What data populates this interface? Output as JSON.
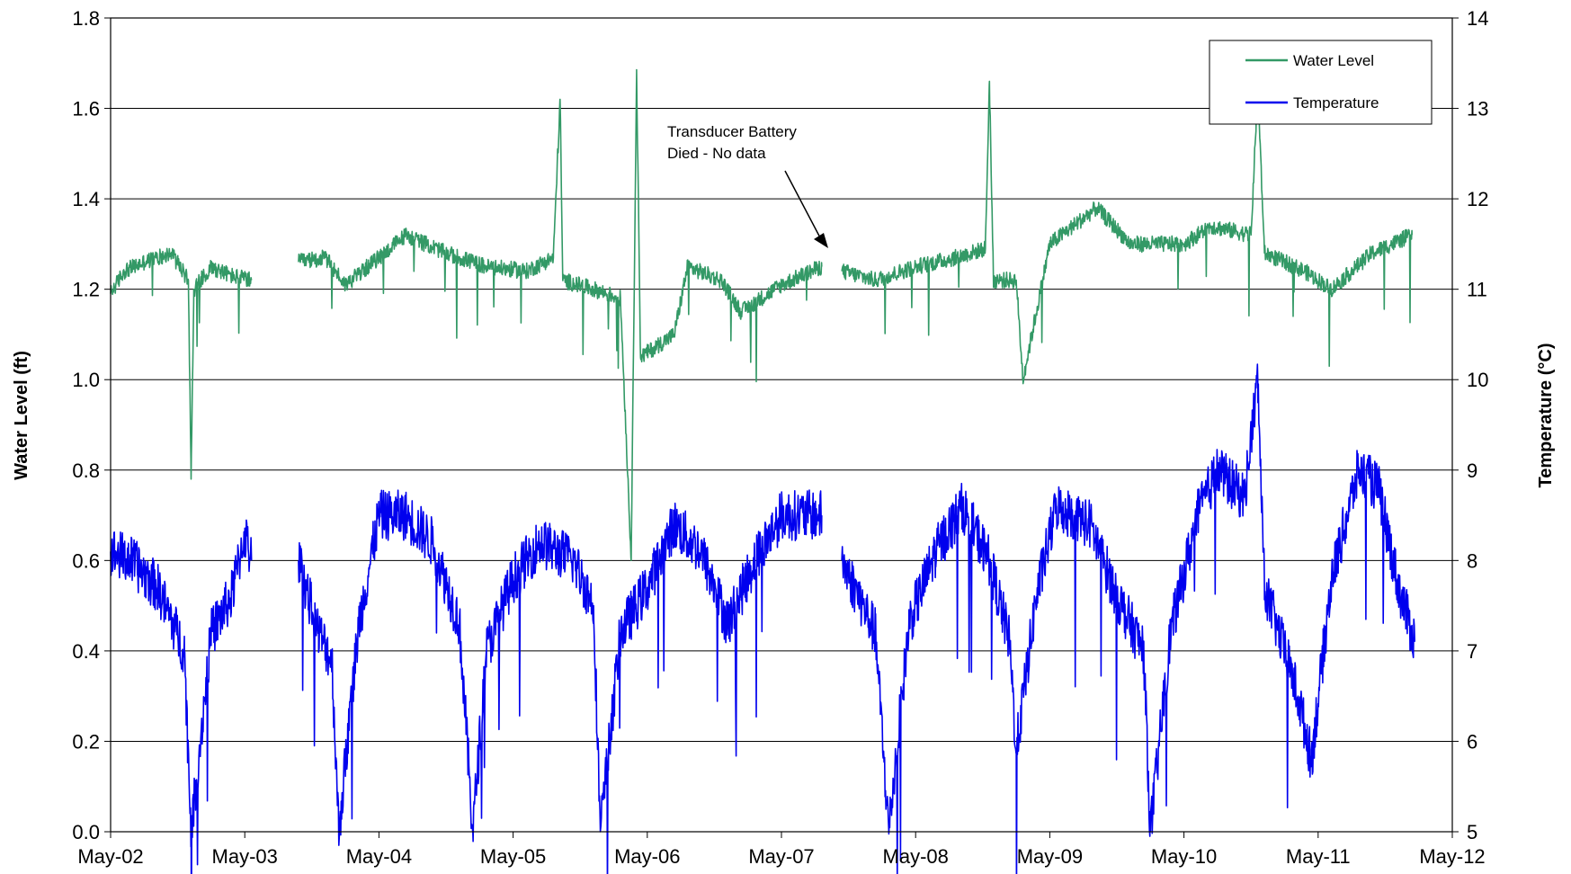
{
  "chart_data": {
    "type": "line",
    "title": "",
    "x_axis": {
      "tick_labels": [
        "May-02",
        "May-03",
        "May-04",
        "May-05",
        "May-06",
        "May-07",
        "May-08",
        "May-09",
        "May-10",
        "May-11",
        "May-12"
      ],
      "range": [
        "May-02",
        "May-12"
      ]
    },
    "y_left": {
      "label": "Water Level (ft)",
      "range": [
        0.0,
        1.8
      ],
      "ticks": [
        "0.0",
        "0.2",
        "0.4",
        "0.6",
        "0.8",
        "1.0",
        "1.2",
        "1.4",
        "1.6",
        "1.8"
      ]
    },
    "y_right": {
      "label": "Temperature (°C)",
      "range": [
        5,
        14
      ],
      "ticks": [
        "5",
        "6",
        "7",
        "8",
        "9",
        "10",
        "11",
        "12",
        "13",
        "14"
      ]
    },
    "grid": "horizontal",
    "legend_position": "top-right",
    "annotation": {
      "lines": [
        "Transducer Battery",
        "Died - No data"
      ]
    },
    "series": [
      {
        "name": "Water Level",
        "axis": "left",
        "color": "#339966",
        "segments": [
          [
            [
              2002.0,
              1.19
            ],
            [
              2002.1,
              1.24
            ],
            [
              2002.25,
              1.26
            ],
            [
              2002.45,
              1.28
            ],
            [
              2002.58,
              1.22
            ],
            [
              2002.6,
              0.78
            ],
            [
              2002.62,
              1.2
            ],
            [
              2002.75,
              1.25
            ],
            [
              2002.9,
              1.23
            ],
            [
              2003.05,
              1.22
            ]
          ],
          [
            [
              2003.4,
              1.26
            ],
            [
              2003.6,
              1.27
            ],
            [
              2003.75,
              1.21
            ],
            [
              2004.0,
              1.27
            ],
            [
              2004.2,
              1.32
            ],
            [
              2004.5,
              1.28
            ],
            [
              2004.8,
              1.25
            ],
            [
              2005.1,
              1.24
            ],
            [
              2005.3,
              1.27
            ],
            [
              2005.35,
              1.62
            ],
            [
              2005.37,
              1.22
            ],
            [
              2005.6,
              1.2
            ],
            [
              2005.8,
              1.18
            ],
            [
              2005.86,
              0.75
            ],
            [
              2005.88,
              0.6
            ],
            [
              2005.92,
              1.68
            ],
            [
              2005.95,
              1.05
            ],
            [
              2006.2,
              1.1
            ],
            [
              2006.3,
              1.25
            ],
            [
              2006.55,
              1.22
            ],
            [
              2006.7,
              1.15
            ],
            [
              2007.0,
              1.21
            ],
            [
              2007.3,
              1.25
            ]
          ],
          [
            [
              2007.45,
              1.24
            ],
            [
              2007.7,
              1.22
            ],
            [
              2008.0,
              1.25
            ],
            [
              2008.3,
              1.27
            ],
            [
              2008.52,
              1.29
            ],
            [
              2008.55,
              1.66
            ],
            [
              2008.58,
              1.22
            ],
            [
              2008.75,
              1.22
            ],
            [
              2008.8,
              1.0
            ],
            [
              2009.0,
              1.3
            ],
            [
              2009.35,
              1.38
            ],
            [
              2009.6,
              1.3
            ],
            [
              2010.0,
              1.3
            ],
            [
              2010.2,
              1.34
            ],
            [
              2010.5,
              1.32
            ],
            [
              2010.55,
              1.65
            ],
            [
              2010.6,
              1.28
            ],
            [
              2010.9,
              1.24
            ],
            [
              2011.1,
              1.2
            ],
            [
              2011.4,
              1.28
            ],
            [
              2011.7,
              1.32
            ]
          ]
        ]
      },
      {
        "name": "Temperature",
        "axis": "right",
        "color": "#0000ee",
        "segments": [
          [
            [
              2002.0,
              8.1
            ],
            [
              2002.15,
              8.0
            ],
            [
              2002.35,
              7.7
            ],
            [
              2002.55,
              7.0
            ],
            [
              2002.6,
              5.0
            ],
            [
              2002.75,
              7.2
            ],
            [
              2002.9,
              7.6
            ],
            [
              2003.0,
              8.3
            ],
            [
              2003.05,
              8.0
            ]
          ],
          [
            [
              2003.4,
              8.0
            ],
            [
              2003.55,
              7.2
            ],
            [
              2003.65,
              6.9
            ],
            [
              2003.7,
              5.0
            ],
            [
              2003.85,
              7.3
            ],
            [
              2004.0,
              8.5
            ],
            [
              2004.2,
              8.5
            ],
            [
              2004.4,
              8.2
            ],
            [
              2004.6,
              7.3
            ],
            [
              2004.7,
              5.0
            ],
            [
              2004.8,
              7.0
            ],
            [
              2005.0,
              7.8
            ],
            [
              2005.2,
              8.2
            ],
            [
              2005.45,
              8.0
            ],
            [
              2005.6,
              7.5
            ],
            [
              2005.65,
              5.0
            ],
            [
              2005.8,
              7.2
            ],
            [
              2006.0,
              7.7
            ],
            [
              2006.2,
              8.4
            ],
            [
              2006.4,
              8.1
            ],
            [
              2006.6,
              7.3
            ],
            [
              2006.8,
              8.0
            ],
            [
              2007.0,
              8.5
            ],
            [
              2007.3,
              8.5
            ]
          ],
          [
            [
              2007.45,
              8.0
            ],
            [
              2007.7,
              7.2
            ],
            [
              2007.8,
              5.0
            ],
            [
              2007.95,
              7.3
            ],
            [
              2008.15,
              8.1
            ],
            [
              2008.35,
              8.6
            ],
            [
              2008.55,
              8.0
            ],
            [
              2008.7,
              7.1
            ],
            [
              2008.75,
              5.9
            ],
            [
              2008.9,
              7.6
            ],
            [
              2009.05,
              8.6
            ],
            [
              2009.3,
              8.4
            ],
            [
              2009.5,
              7.6
            ],
            [
              2009.7,
              7.0
            ],
            [
              2009.75,
              5.0
            ],
            [
              2009.9,
              7.2
            ],
            [
              2010.1,
              8.5
            ],
            [
              2010.25,
              9.0
            ],
            [
              2010.45,
              8.7
            ],
            [
              2010.55,
              10.0
            ],
            [
              2010.6,
              7.7
            ],
            [
              2010.75,
              7.0
            ],
            [
              2010.85,
              6.5
            ],
            [
              2010.95,
              5.8
            ],
            [
              2011.1,
              7.8
            ],
            [
              2011.3,
              9.0
            ],
            [
              2011.45,
              8.8
            ],
            [
              2011.6,
              7.7
            ],
            [
              2011.72,
              7.1
            ]
          ]
        ]
      }
    ]
  }
}
